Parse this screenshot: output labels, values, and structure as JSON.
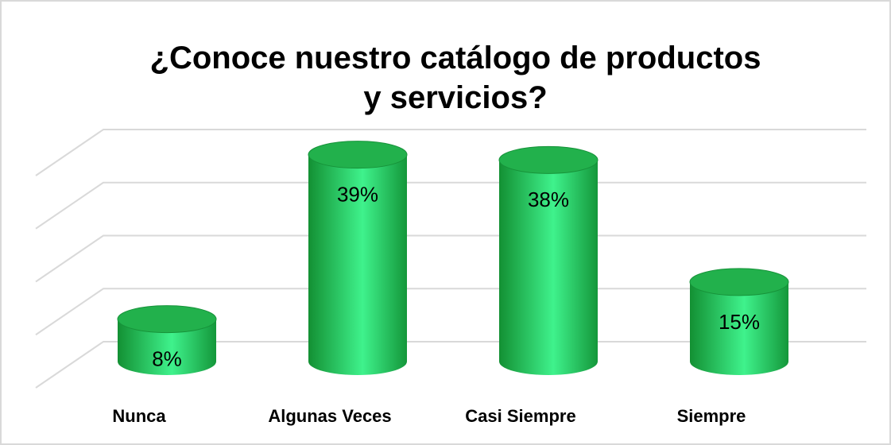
{
  "chart_data": {
    "type": "bar3d",
    "title": "¿Conoce nuestro catálogo de productos y servicios?",
    "categories": [
      "Nunca",
      "Algunas Veces",
      "Casi Siempre",
      "Siempre"
    ],
    "values": [
      8,
      39,
      38,
      15
    ],
    "value_labels": [
      "8%",
      "39%",
      "38%",
      "15%"
    ],
    "color": "#22b14c",
    "ylim": [
      0,
      40
    ],
    "yticks": [
      0,
      10,
      20,
      30,
      40
    ],
    "grid": true
  }
}
